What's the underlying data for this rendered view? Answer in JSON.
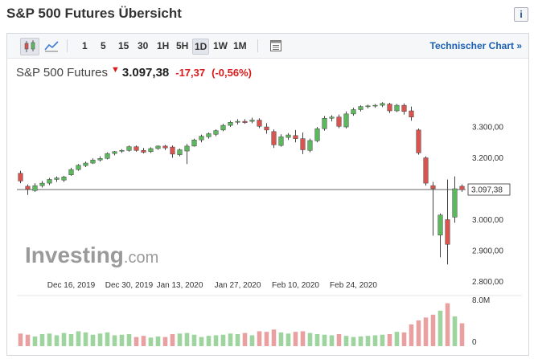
{
  "header": {
    "title": "S&P 500 Futures Übersicht",
    "info_icon": "i"
  },
  "toolbar": {
    "chart_types": [
      "candlestick-icon",
      "line-chart-icon"
    ],
    "timeframes": [
      "1",
      "5",
      "15",
      "30",
      "1H",
      "5H",
      "1D",
      "1W",
      "1M"
    ],
    "active_timeframe": "1D",
    "table_icon": "table-icon",
    "technical_chart_label": "Technischer Chart »"
  },
  "quote": {
    "name": "S&P 500 Futures",
    "arrow": "▼",
    "price": "3.097,38",
    "change": "-17,37",
    "change_pct": "(-0,56%)"
  },
  "colors": {
    "up": "#5cb85c",
    "down": "#d9534f",
    "accent_link": "#1a5fb4",
    "negative_text": "#d91b1b"
  },
  "watermark": {
    "brand": "Investing",
    "suffix": ".com"
  },
  "chart_data": {
    "type": "candlestick",
    "x_ticks": [
      "Dec 16, 2019",
      "Dec 30, 2019",
      "Jan 13, 2020",
      "Jan 27, 2020",
      "Feb 10, 2020",
      "Feb 24, 2020"
    ],
    "x_tick_bar_index": [
      7,
      15,
      22,
      30,
      38,
      46
    ],
    "y_ticks": [
      "3.300,00",
      "3.200,00",
      "3.100,00",
      "3.000,00",
      "2.900,00",
      "2.800,00"
    ],
    "y_tick_values": [
      3300,
      3200,
      3100,
      3000,
      2900,
      2800
    ],
    "ylim": [
      2770,
      3430
    ],
    "current_price_label": "3.097,38",
    "current_price": 3097.38,
    "volume_ticks": [
      "8.0M",
      "0"
    ],
    "volume_max": 8000000,
    "ohlc": [
      [
        3150,
        3158,
        3118,
        3125
      ],
      [
        3108,
        3114,
        3080,
        3098
      ],
      [
        3094,
        3118,
        3090,
        3110
      ],
      [
        3110,
        3125,
        3104,
        3118
      ],
      [
        3118,
        3135,
        3112,
        3130
      ],
      [
        3130,
        3140,
        3122,
        3135
      ],
      [
        3128,
        3142,
        3122,
        3138
      ],
      [
        3145,
        3168,
        3142,
        3162
      ],
      [
        3162,
        3180,
        3158,
        3176
      ],
      [
        3175,
        3188,
        3170,
        3183
      ],
      [
        3183,
        3198,
        3180,
        3193
      ],
      [
        3193,
        3205,
        3188,
        3198
      ],
      [
        3198,
        3218,
        3195,
        3214
      ],
      [
        3214,
        3222,
        3208,
        3220
      ],
      [
        3222,
        3228,
        3216,
        3224
      ],
      [
        3224,
        3240,
        3220,
        3236
      ],
      [
        3236,
        3240,
        3220,
        3224
      ],
      [
        3224,
        3232,
        3214,
        3218
      ],
      [
        3220,
        3234,
        3216,
        3230
      ],
      [
        3230,
        3240,
        3226,
        3238
      ],
      [
        3238,
        3242,
        3225,
        3232
      ],
      [
        3235,
        3240,
        3200,
        3212
      ],
      [
        3210,
        3230,
        3205,
        3226
      ],
      [
        3222,
        3245,
        3180,
        3238
      ],
      [
        3238,
        3262,
        3236,
        3258
      ],
      [
        3258,
        3275,
        3250,
        3270
      ],
      [
        3268,
        3282,
        3262,
        3278
      ],
      [
        3276,
        3292,
        3270,
        3288
      ],
      [
        3290,
        3310,
        3286,
        3305
      ],
      [
        3305,
        3320,
        3300,
        3315
      ],
      [
        3315,
        3325,
        3308,
        3318
      ],
      [
        3318,
        3325,
        3310,
        3314
      ],
      [
        3318,
        3330,
        3312,
        3322
      ],
      [
        3322,
        3328,
        3296,
        3302
      ],
      [
        3300,
        3312,
        3278,
        3290
      ],
      [
        3285,
        3292,
        3232,
        3242
      ],
      [
        3240,
        3276,
        3236,
        3268
      ],
      [
        3266,
        3280,
        3258,
        3274
      ],
      [
        3272,
        3290,
        3250,
        3262
      ],
      [
        3262,
        3282,
        3212,
        3226
      ],
      [
        3224,
        3262,
        3218,
        3256
      ],
      [
        3255,
        3300,
        3250,
        3294
      ],
      [
        3294,
        3335,
        3288,
        3328
      ],
      [
        3328,
        3338,
        3318,
        3332
      ],
      [
        3332,
        3340,
        3296,
        3302
      ],
      [
        3300,
        3350,
        3295,
        3342
      ],
      [
        3342,
        3362,
        3336,
        3356
      ],
      [
        3356,
        3370,
        3350,
        3366
      ],
      [
        3366,
        3372,
        3360,
        3368
      ],
      [
        3368,
        3374,
        3362,
        3370
      ],
      [
        3370,
        3380,
        3364,
        3376
      ],
      [
        3374,
        3378,
        3345,
        3352
      ],
      [
        3352,
        3374,
        3348,
        3370
      ],
      [
        3370,
        3376,
        3340,
        3350
      ],
      [
        3352,
        3366,
        3320,
        3332
      ],
      [
        3290,
        3295,
        3210,
        3216
      ],
      [
        3200,
        3205,
        3110,
        3118
      ],
      [
        3110,
        3122,
        2948,
        3100
      ],
      [
        2950,
        3020,
        2878,
        3015
      ],
      [
        3000,
        3130,
        2855,
        2920
      ],
      [
        3008,
        3140,
        2990,
        3100
      ],
      [
        3108,
        3114,
        3090,
        3097
      ]
    ],
    "volume": [
      2.2,
      2.0,
      1.7,
      2.1,
      2.2,
      1.9,
      2.3,
      2.1,
      2.6,
      2.4,
      2.0,
      2.2,
      2.4,
      1.9,
      2.0,
      2.1,
      1.6,
      1.8,
      1.5,
      1.7,
      1.6,
      2.1,
      2.2,
      2.3,
      2.0,
      1.6,
      1.8,
      1.9,
      2.0,
      2.2,
      2.1,
      2.3,
      1.9,
      2.6,
      2.5,
      2.9,
      2.4,
      2.2,
      2.5,
      2.6,
      2.3,
      2.1,
      2.0,
      1.9,
      2.1,
      1.8,
      1.6,
      1.7,
      1.8,
      1.9,
      2.0,
      2.1,
      2.5,
      2.4,
      3.8,
      4.5,
      5.0,
      5.5,
      6.2,
      7.5,
      5.2,
      4.0
    ]
  }
}
